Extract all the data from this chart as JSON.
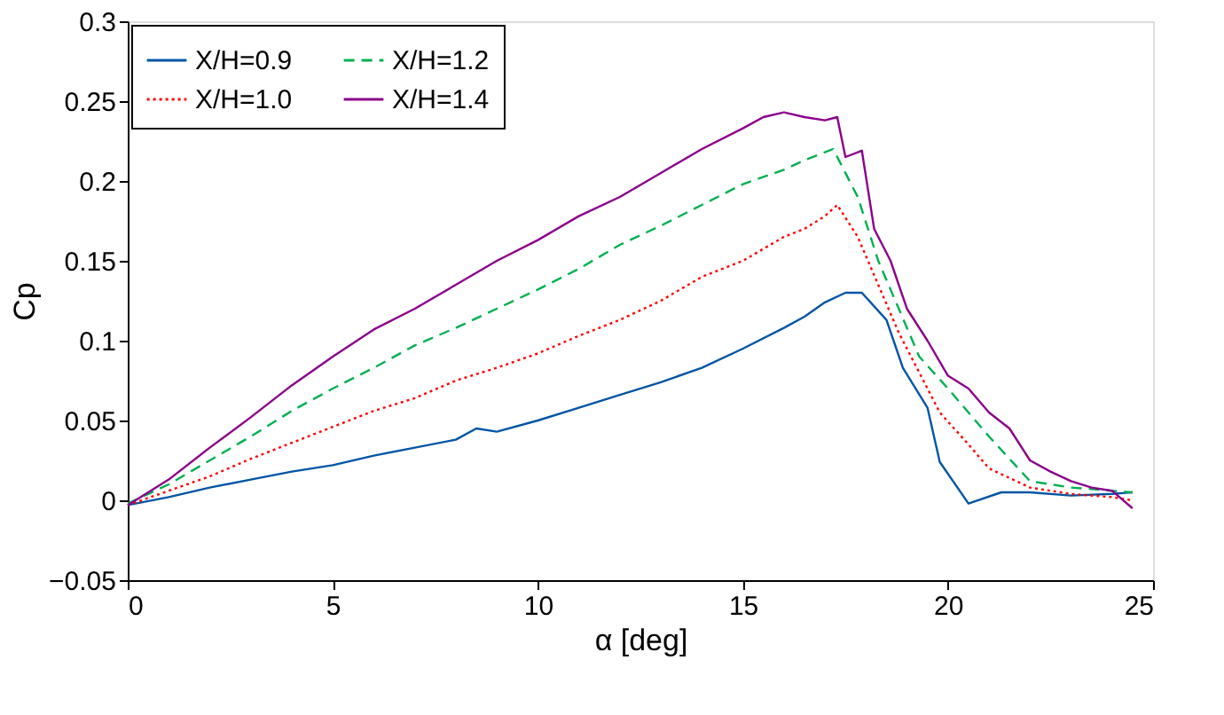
{
  "chart_data": {
    "type": "line",
    "xlabel": "α [deg]",
    "ylabel": "Cp",
    "xlim": [
      0,
      25
    ],
    "xticks": [
      0,
      5,
      10,
      15,
      20,
      25
    ],
    "ylim": [
      -0.05,
      0.3
    ],
    "yticks": [
      {
        "value": -0.05,
        "label": "−0.05"
      },
      0,
      0.05,
      0.1,
      0.15,
      0.2,
      0.25,
      0.3
    ],
    "grid": false,
    "legend": "top left",
    "marker": "none",
    "series": [
      {
        "name": "X/H=0.9",
        "color": "#0055a5",
        "line_style": "solid",
        "x": [
          0,
          1,
          2,
          3,
          4,
          5,
          6,
          7,
          8,
          8.5,
          9,
          10,
          11,
          12,
          13,
          14,
          15,
          16,
          16.5,
          17,
          17.5,
          17.9,
          18.5,
          18.9,
          19.5,
          19.8,
          20.5,
          21.3,
          22,
          23,
          24,
          24.5
        ],
        "values": [
          -0.003,
          0.002,
          0.008,
          0.013,
          0.018,
          0.022,
          0.028,
          0.033,
          0.038,
          0.045,
          0.043,
          0.05,
          0.058,
          0.066,
          0.074,
          0.083,
          0.095,
          0.108,
          0.115,
          0.124,
          0.13,
          0.13,
          0.113,
          0.083,
          0.058,
          0.024,
          -0.002,
          0.005,
          0.005,
          0.003,
          0.004,
          0.005
        ]
      },
      {
        "name": "X/H=1.0",
        "color": "#ff0000",
        "line_style": "dotted",
        "x": [
          0,
          1,
          2,
          3,
          4,
          5,
          6,
          7,
          8,
          9,
          10,
          11,
          12,
          13,
          14,
          15,
          16,
          16.5,
          17,
          17.3,
          17.8,
          18.3,
          18.8,
          19.3,
          19.8,
          20.5,
          21,
          22,
          23,
          24,
          24.5
        ],
        "values": [
          -0.003,
          0.006,
          0.015,
          0.026,
          0.036,
          0.046,
          0.056,
          0.064,
          0.075,
          0.083,
          0.092,
          0.103,
          0.113,
          0.125,
          0.14,
          0.15,
          0.165,
          0.17,
          0.178,
          0.185,
          0.165,
          0.135,
          0.105,
          0.08,
          0.055,
          0.035,
          0.02,
          0.008,
          0.004,
          0.002,
          0.0
        ]
      },
      {
        "name": "X/H=1.2",
        "color": "#00b050",
        "line_style": "dashed",
        "x": [
          0,
          1,
          2,
          3,
          4,
          5,
          6,
          7,
          8,
          9,
          10,
          11,
          12,
          13,
          14,
          15,
          16,
          16.5,
          17.2,
          17.8,
          18.3,
          18.8,
          19.3,
          20,
          20.5,
          21,
          22,
          23,
          24,
          24.5
        ],
        "values": [
          -0.002,
          0.01,
          0.025,
          0.04,
          0.056,
          0.07,
          0.083,
          0.097,
          0.108,
          0.12,
          0.132,
          0.145,
          0.16,
          0.172,
          0.185,
          0.198,
          0.207,
          0.213,
          0.22,
          0.19,
          0.15,
          0.12,
          0.09,
          0.07,
          0.055,
          0.04,
          0.012,
          0.008,
          0.006,
          0.005
        ]
      },
      {
        "name": "X/H=1.4",
        "color": "#8b008b",
        "line_style": "solid",
        "x": [
          0,
          1,
          2,
          3,
          4,
          5,
          6,
          7,
          8,
          9,
          10,
          11,
          12,
          13,
          14,
          15,
          15.5,
          16,
          16.5,
          17,
          17.3,
          17.5,
          17.9,
          18.2,
          18.6,
          19,
          19.5,
          20,
          20.5,
          21,
          21.5,
          22,
          22.5,
          23,
          23.5,
          24,
          24.5
        ],
        "values": [
          -0.003,
          0.013,
          0.033,
          0.052,
          0.072,
          0.09,
          0.107,
          0.12,
          0.135,
          0.15,
          0.163,
          0.178,
          0.19,
          0.205,
          0.22,
          0.233,
          0.24,
          0.243,
          0.24,
          0.238,
          0.24,
          0.215,
          0.219,
          0.17,
          0.15,
          0.12,
          0.1,
          0.078,
          0.07,
          0.055,
          0.045,
          0.025,
          0.018,
          0.012,
          0.008,
          0.006,
          -0.005
        ]
      }
    ]
  }
}
